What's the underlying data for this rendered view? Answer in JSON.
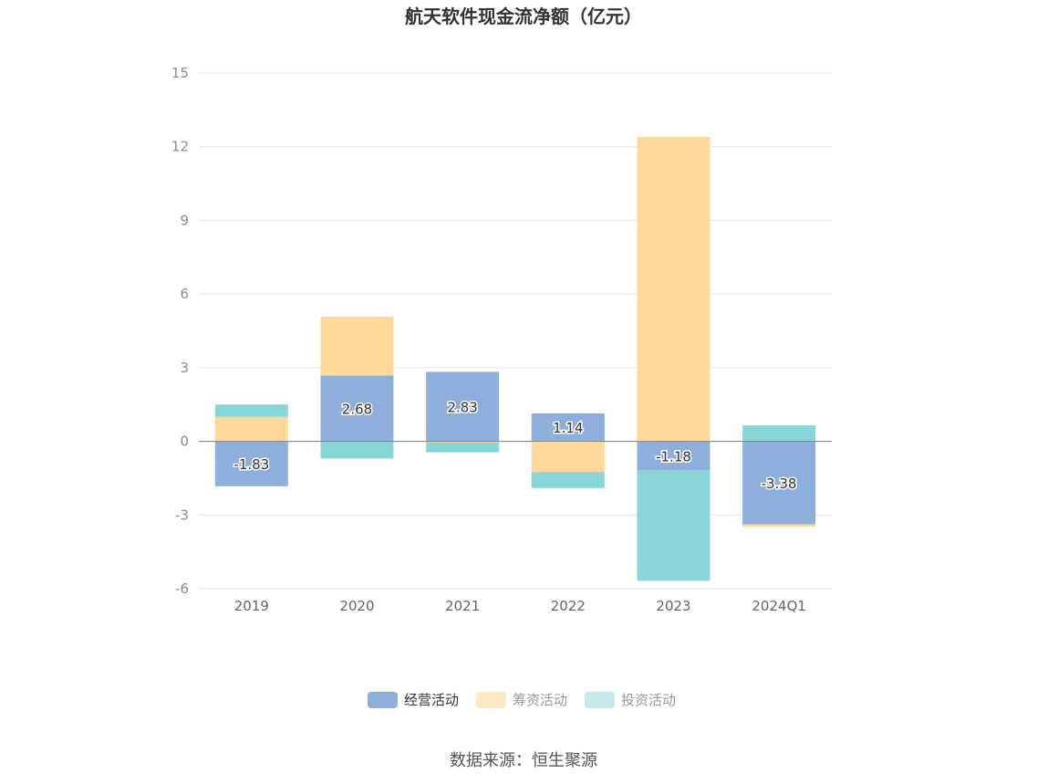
{
  "chart_data": {
    "type": "bar",
    "stacked": true,
    "title": "航天软件现金流净额（亿元）",
    "categories": [
      "2019",
      "2020",
      "2021",
      "2022",
      "2023",
      "2024Q1"
    ],
    "ylim": [
      -6,
      15
    ],
    "yticks": [
      15,
      12,
      9,
      6,
      3,
      0,
      -3,
      -6
    ],
    "grid": true,
    "legend_position": "bottom",
    "series": [
      {
        "name": "经营活动",
        "color": "#8eaedb",
        "values": [
          -1.83,
          2.68,
          2.83,
          1.14,
          -1.18,
          -3.38
        ],
        "labels": [
          "-1.83",
          "2.68",
          "2.83",
          "1.14",
          "-1.18",
          "-3.38"
        ]
      },
      {
        "name": "筹资活动",
        "color": "#fed99b",
        "values": [
          1.0,
          2.4,
          -0.05,
          -1.25,
          12.4,
          -0.1
        ]
      },
      {
        "name": "投资活动",
        "color": "#88d5d8",
        "values": [
          0.5,
          -0.7,
          -0.4,
          -0.65,
          -4.5,
          0.65
        ]
      }
    ],
    "legend_colors": [
      "#8eaedb",
      "#fde8c6",
      "#c4e9ea"
    ],
    "source": "数据来源：恒生聚源"
  }
}
